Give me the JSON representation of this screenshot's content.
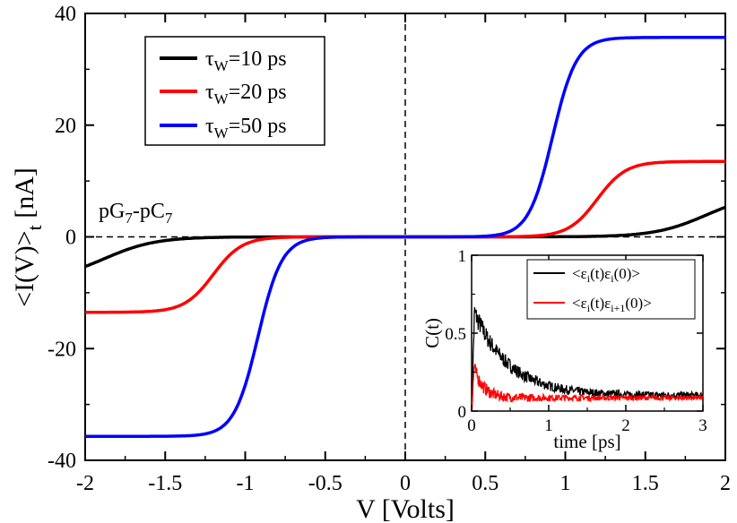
{
  "chart_data": [
    {
      "type": "line",
      "xlabel": "V [Volts]",
      "ylabel": "<I(V)>",
      "ylabel_sub": "t",
      "ylabel_unit": " [nA]",
      "xlim": [
        -2,
        2
      ],
      "ylim": [
        -40,
        40
      ],
      "xticks": [
        -2,
        -1.5,
        -1,
        -0.5,
        0,
        0.5,
        1,
        1.5,
        2
      ],
      "xtick_labels": [
        "-2",
        "-1.5",
        "-1",
        "-0.5",
        "0",
        "0.5",
        "1",
        "1.5",
        "2"
      ],
      "yticks": [
        -40,
        -20,
        0,
        20,
        40
      ],
      "ytick_labels": [
        "-40",
        "-20",
        "0",
        "20",
        "40"
      ],
      "annotation": {
        "pre": "pG",
        "sub1": "7",
        "mid": "-pC",
        "sub2": "7"
      },
      "legend": {
        "position": "top-left",
        "entries": [
          {
            "tau": "τ",
            "sub": "W",
            "rest": "=10 ps",
            "color": "#000000"
          },
          {
            "tau": "τ",
            "sub": "W",
            "rest": "=20 ps",
            "color": "#ff0000"
          },
          {
            "tau": "τ",
            "sub": "W",
            "rest": "=50 ps",
            "color": "#0000ff"
          }
        ]
      },
      "series": [
        {
          "name": "τW=10 ps",
          "color": "#000000",
          "center": 1.88,
          "amplitude": 7.8,
          "width": 0.16
        },
        {
          "name": "τW=20 ps",
          "color": "#ff0000",
          "center": 1.2,
          "amplitude": 13.5,
          "width": 0.09
        },
        {
          "name": "τW=50 ps",
          "color": "#0000ff",
          "center": 0.92,
          "amplitude": 35.7,
          "width": 0.075
        }
      ]
    },
    {
      "type": "line",
      "position": "bottom-right inset",
      "xlabel": "time [ps]",
      "ylabel": "C(t)",
      "xlim": [
        0,
        3
      ],
      "ylim": [
        0,
        1
      ],
      "xticks": [
        0,
        1,
        2,
        3
      ],
      "xtick_labels": [
        "0",
        "1",
        "2",
        "3"
      ],
      "yticks": [
        0,
        0.5,
        1
      ],
      "ytick_labels": [
        "0",
        "0.5",
        "1"
      ],
      "legend": {
        "position": "top-right",
        "entries": [
          {
            "pre": "<ε",
            "s1": "i",
            "mid": "(t)ε",
            "s2": "i",
            "post": "(0)>",
            "color": "#000000"
          },
          {
            "pre": "<ε",
            "s1": "i",
            "mid": "(t)ε",
            "s2": "i+1",
            "post": "(0)>",
            "color": "#ff0000"
          }
        ]
      },
      "series": [
        {
          "name": "<εi(t)εi(0)>",
          "color": "#000000",
          "peak": 0.68,
          "plateau": 0.1,
          "decay_ps": 0.45
        },
        {
          "name": "<εi(t)εi+1(0)>",
          "color": "#ff0000",
          "peak": 0.34,
          "plateau": 0.085,
          "decay_ps": 0.12
        }
      ]
    }
  ]
}
